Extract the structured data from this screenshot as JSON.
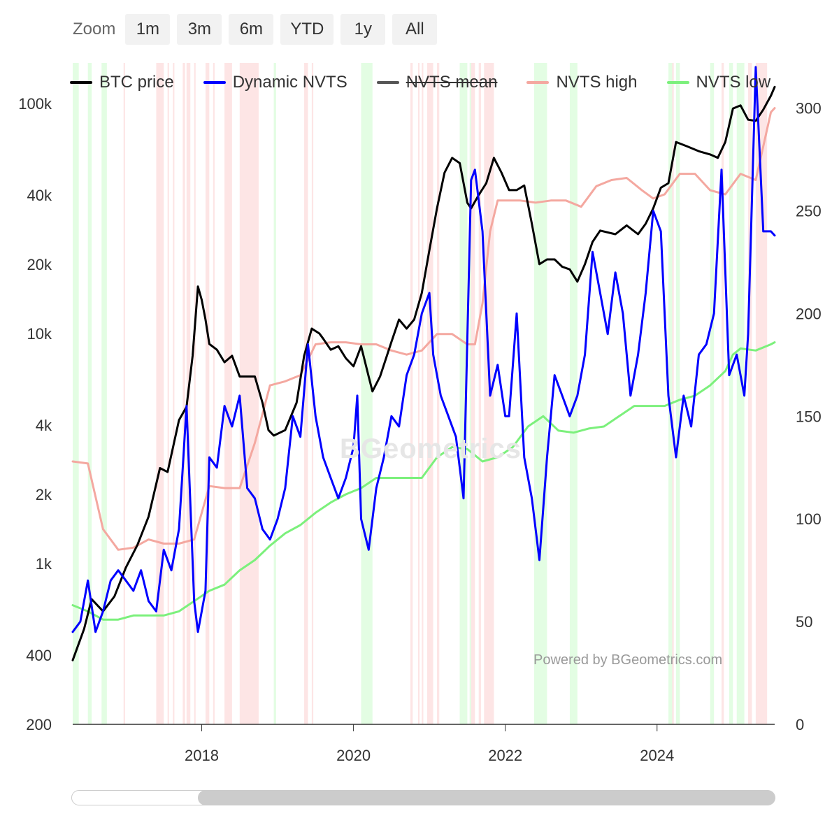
{
  "zoom": {
    "label": "Zoom",
    "buttons": [
      "1m",
      "3m",
      "6m",
      "YTD",
      "1y",
      "All"
    ]
  },
  "legend": [
    {
      "name": "BTC price",
      "color": "#000000",
      "hidden": false
    },
    {
      "name": "Dynamic NVTS",
      "color": "#0000ff",
      "hidden": false
    },
    {
      "name": "NVTS mean",
      "color": "#555555",
      "hidden": true
    },
    {
      "name": "NVTS high",
      "color": "#f4a8a0",
      "hidden": false
    },
    {
      "name": "NVTS low",
      "color": "#7cf07c",
      "hidden": false
    }
  ],
  "credit": "Powered by BGeometrics.com",
  "watermark": "BGeometrics",
  "chart_data": {
    "type": "line",
    "x_range": [
      2016.3,
      2025.55
    ],
    "x_ticks": [
      "2018",
      "2020",
      "2022",
      "2024"
    ],
    "left_axis": {
      "scale": "log",
      "range": [
        200,
        150000
      ],
      "ticks": [
        "100k",
        "40k",
        "20k",
        "10k",
        "4k",
        "2k",
        "1k",
        "400",
        "200"
      ]
    },
    "right_axis": {
      "scale": "linear",
      "range": [
        0,
        322
      ],
      "ticks": [
        "300",
        "250",
        "200",
        "150",
        "100",
        "50",
        "0"
      ]
    },
    "series": [
      {
        "name": "BTC price",
        "axis": "left",
        "color": "#000000",
        "x": [
          2016.3,
          2016.45,
          2016.55,
          2016.7,
          2016.85,
          2017.0,
          2017.15,
          2017.3,
          2017.45,
          2017.55,
          2017.7,
          2017.8,
          2017.88,
          2017.95,
          2018.0,
          2018.05,
          2018.1,
          2018.2,
          2018.3,
          2018.4,
          2018.5,
          2018.6,
          2018.7,
          2018.8,
          2018.88,
          2018.95,
          2019.1,
          2019.25,
          2019.35,
          2019.45,
          2019.55,
          2019.6,
          2019.7,
          2019.8,
          2019.9,
          2020.0,
          2020.1,
          2020.2,
          2020.25,
          2020.35,
          2020.5,
          2020.6,
          2020.7,
          2020.8,
          2020.9,
          2021.0,
          2021.1,
          2021.2,
          2021.3,
          2021.4,
          2021.5,
          2021.55,
          2021.65,
          2021.75,
          2021.85,
          2021.95,
          2022.05,
          2022.15,
          2022.25,
          2022.35,
          2022.45,
          2022.55,
          2022.65,
          2022.75,
          2022.85,
          2022.95,
          2023.05,
          2023.15,
          2023.25,
          2023.45,
          2023.6,
          2023.75,
          2023.85,
          2023.95,
          2024.05,
          2024.15,
          2024.25,
          2024.4,
          2024.55,
          2024.7,
          2024.8,
          2024.9,
          2025.0,
          2025.1,
          2025.2,
          2025.3,
          2025.4,
          2025.5,
          2025.55
        ],
        "values": [
          380,
          520,
          700,
          620,
          720,
          960,
          1200,
          1600,
          2600,
          2500,
          4200,
          4800,
          8000,
          16000,
          14000,
          11500,
          9000,
          8500,
          7500,
          8000,
          6500,
          6500,
          6500,
          5000,
          3800,
          3600,
          3800,
          5000,
          8000,
          10500,
          10000,
          9500,
          8500,
          8800,
          7800,
          7200,
          8800,
          6500,
          5600,
          6500,
          9200,
          11500,
          10500,
          11500,
          15000,
          23000,
          35000,
          50000,
          58000,
          55000,
          37000,
          35000,
          40000,
          45000,
          58000,
          50000,
          42000,
          42000,
          44000,
          30000,
          20000,
          21000,
          21000,
          19500,
          19000,
          16800,
          20000,
          25000,
          28000,
          27000,
          29500,
          27000,
          30000,
          35000,
          43000,
          45000,
          68000,
          65000,
          62000,
          60000,
          58000,
          68000,
          95000,
          98000,
          85000,
          84000,
          94000,
          108000,
          118000
        ]
      },
      {
        "name": "Dynamic NVTS",
        "axis": "right",
        "color": "#0000ff",
        "x": [
          2016.3,
          2016.4,
          2016.5,
          2016.6,
          2016.7,
          2016.8,
          2016.9,
          2017.0,
          2017.1,
          2017.2,
          2017.3,
          2017.4,
          2017.5,
          2017.6,
          2017.7,
          2017.8,
          2017.9,
          2017.95,
          2018.05,
          2018.1,
          2018.2,
          2018.3,
          2018.4,
          2018.5,
          2018.6,
          2018.7,
          2018.8,
          2018.9,
          2019.0,
          2019.1,
          2019.2,
          2019.3,
          2019.4,
          2019.5,
          2019.6,
          2019.7,
          2019.8,
          2019.9,
          2020.0,
          2020.05,
          2020.1,
          2020.2,
          2020.3,
          2020.4,
          2020.5,
          2020.6,
          2020.7,
          2020.8,
          2020.9,
          2021.0,
          2021.05,
          2021.15,
          2021.25,
          2021.35,
          2021.45,
          2021.55,
          2021.6,
          2021.7,
          2021.8,
          2021.9,
          2022.0,
          2022.05,
          2022.15,
          2022.25,
          2022.35,
          2022.45,
          2022.55,
          2022.65,
          2022.75,
          2022.85,
          2022.95,
          2023.05,
          2023.15,
          2023.25,
          2023.35,
          2023.45,
          2023.55,
          2023.65,
          2023.75,
          2023.85,
          2023.95,
          2024.05,
          2024.15,
          2024.25,
          2024.35,
          2024.45,
          2024.55,
          2024.65,
          2024.75,
          2024.85,
          2024.95,
          2025.05,
          2025.15,
          2025.2,
          2025.3,
          2025.4,
          2025.5,
          2025.55
        ],
        "values": [
          45,
          50,
          70,
          45,
          55,
          70,
          75,
          70,
          65,
          75,
          60,
          55,
          85,
          75,
          95,
          155,
          60,
          45,
          65,
          130,
          125,
          155,
          145,
          160,
          115,
          110,
          95,
          90,
          100,
          115,
          150,
          140,
          185,
          150,
          130,
          120,
          110,
          120,
          135,
          160,
          100,
          85,
          115,
          130,
          150,
          145,
          170,
          180,
          200,
          210,
          180,
          160,
          150,
          140,
          110,
          265,
          270,
          240,
          160,
          175,
          150,
          150,
          200,
          130,
          110,
          80,
          130,
          170,
          160,
          150,
          160,
          180,
          230,
          210,
          190,
          220,
          200,
          160,
          180,
          210,
          250,
          240,
          160,
          130,
          160,
          145,
          180,
          185,
          200,
          270,
          170,
          180,
          160,
          190,
          320,
          240,
          240,
          238
        ]
      },
      {
        "name": "NVTS high",
        "axis": "right",
        "color": "#f4a8a0",
        "x": [
          2016.3,
          2016.5,
          2016.7,
          2016.9,
          2017.1,
          2017.3,
          2017.5,
          2017.7,
          2017.9,
          2018.1,
          2018.3,
          2018.5,
          2018.7,
          2018.9,
          2019.1,
          2019.3,
          2019.5,
          2019.7,
          2019.9,
          2020.1,
          2020.3,
          2020.5,
          2020.7,
          2020.9,
          2021.1,
          2021.3,
          2021.5,
          2021.6,
          2021.7,
          2021.8,
          2021.9,
          2022.0,
          2022.2,
          2022.4,
          2022.6,
          2022.8,
          2023.0,
          2023.2,
          2023.4,
          2023.6,
          2023.8,
          2023.95,
          2024.1,
          2024.3,
          2024.5,
          2024.7,
          2024.9,
          2025.1,
          2025.3,
          2025.5,
          2025.55
        ],
        "values": [
          128,
          127,
          95,
          85,
          86,
          90,
          88,
          88,
          90,
          116,
          115,
          115,
          137,
          165,
          167,
          170,
          185,
          186,
          186,
          185,
          185,
          182,
          180,
          182,
          190,
          190,
          185,
          185,
          205,
          240,
          255,
          255,
          255,
          254,
          255,
          255,
          252,
          262,
          265,
          266,
          260,
          256,
          258,
          268,
          268,
          260,
          258,
          268,
          265,
          298,
          300
        ]
      },
      {
        "name": "NVTS low",
        "axis": "right",
        "color": "#7cf07c",
        "x": [
          2016.3,
          2016.5,
          2016.7,
          2016.9,
          2017.1,
          2017.3,
          2017.5,
          2017.7,
          2017.9,
          2018.1,
          2018.3,
          2018.5,
          2018.7,
          2018.9,
          2019.1,
          2019.3,
          2019.5,
          2019.7,
          2019.9,
          2020.1,
          2020.3,
          2020.5,
          2020.7,
          2020.9,
          2021.1,
          2021.3,
          2021.5,
          2021.7,
          2021.9,
          2022.1,
          2022.3,
          2022.5,
          2022.7,
          2022.9,
          2023.1,
          2023.3,
          2023.5,
          2023.7,
          2023.9,
          2024.1,
          2024.3,
          2024.5,
          2024.7,
          2024.9,
          2025.0,
          2025.1,
          2025.3,
          2025.5,
          2025.55
        ],
        "values": [
          58,
          55,
          51,
          51,
          53,
          53,
          53,
          55,
          60,
          65,
          68,
          75,
          80,
          87,
          93,
          97,
          103,
          108,
          112,
          115,
          120,
          120,
          120,
          120,
          130,
          135,
          134,
          128,
          130,
          135,
          145,
          150,
          143,
          142,
          144,
          145,
          150,
          155,
          155,
          155,
          158,
          160,
          165,
          172,
          180,
          183,
          182,
          185,
          186
        ]
      }
    ]
  }
}
